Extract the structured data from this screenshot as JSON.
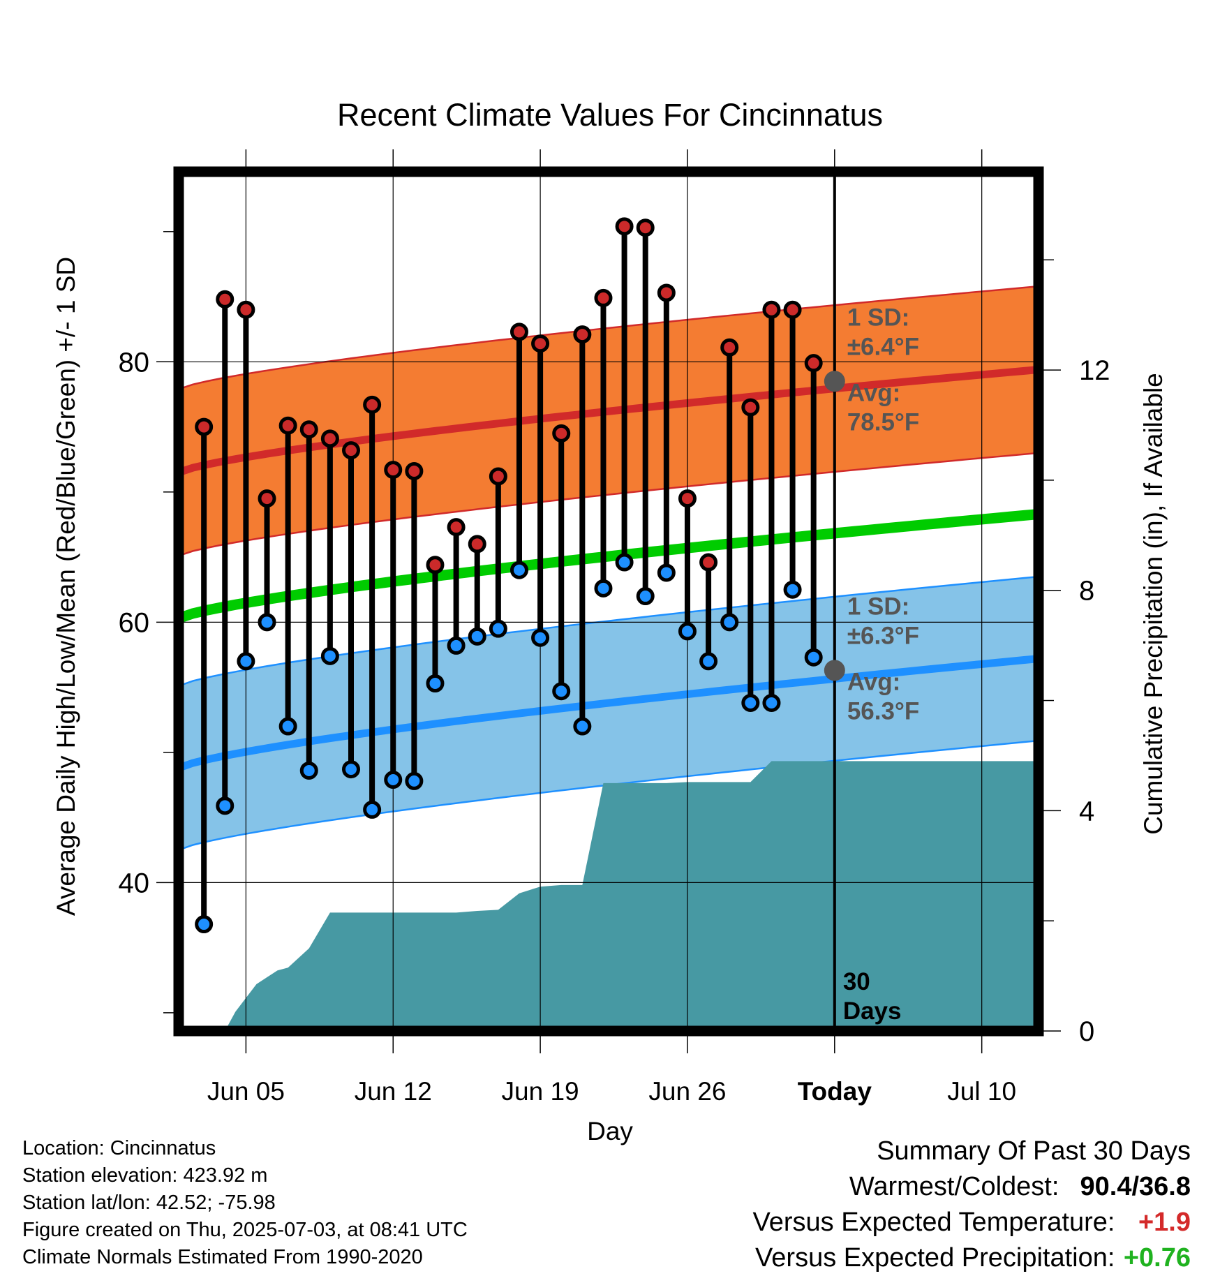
{
  "chart_data": {
    "type": "line",
    "title": "Recent Climate Values For Cincinnatus",
    "xlabel": "Day",
    "ylabel": "Average Daily High/Low/Mean (Red/Blue/Green) +/- 1 SD",
    "y2label": "Cumulative Precipitation (in), If Available",
    "x_ticks": [
      "Jun 05",
      "Jun 12",
      "Jun 19",
      "Jun 26",
      "Today",
      "Jul 10"
    ],
    "x_tick_days": [
      5,
      12,
      19,
      26,
      33,
      40
    ],
    "xlim": [
      1.8,
      42.7
    ],
    "ylim": [
      28.6,
      94.6
    ],
    "y_ticks": [
      40,
      60,
      80
    ],
    "y_minor_ticks": [
      30,
      50,
      70,
      90
    ],
    "y2lim": [
      0,
      15.6
    ],
    "y2_ticks": [
      0,
      4,
      8,
      12
    ],
    "grid": true,
    "today_day": 33,
    "daily_days": [
      3,
      4,
      5,
      6,
      7,
      8,
      9,
      10,
      11,
      12,
      13,
      14,
      15,
      16,
      17,
      18,
      19,
      20,
      21,
      22,
      23,
      24,
      25,
      26,
      27,
      28,
      29,
      30,
      31,
      32
    ],
    "series": [
      {
        "name": "High",
        "color": "#cc2a2a",
        "values": [
          75.0,
          84.8,
          84.0,
          69.5,
          75.1,
          74.8,
          74.1,
          73.2,
          76.7,
          71.7,
          71.6,
          64.4,
          67.3,
          66.0,
          71.2,
          82.3,
          81.4,
          74.5,
          82.1,
          84.9,
          90.4,
          90.3,
          85.3,
          69.5,
          64.6,
          81.1,
          76.5,
          84.0,
          84.0,
          79.9
        ]
      },
      {
        "name": "Low",
        "color": "#1e90ff",
        "values": [
          36.8,
          45.9,
          57.0,
          60.0,
          52.0,
          48.6,
          57.4,
          48.7,
          45.6,
          47.9,
          47.8,
          55.3,
          58.2,
          58.9,
          59.5,
          64.0,
          58.8,
          54.7,
          52.0,
          62.6,
          64.6,
          62.0,
          63.8,
          59.3,
          57.0,
          60.0,
          53.8,
          53.8,
          62.5,
          57.3
        ]
      }
    ],
    "normals": {
      "high": {
        "start": 71.5,
        "end": 79.4,
        "sd": 6.4
      },
      "low": {
        "start": 48.8,
        "end": 57.2,
        "sd": 6.3
      },
      "mean": {
        "start": 60.3,
        "end": 68.3
      }
    },
    "today_markers": [
      {
        "value": 78.5,
        "sd_label": "1 SD:",
        "sd_value": "±6.4°F",
        "avg_label": "Avg:",
        "avg_value": "78.5°F"
      },
      {
        "value": 56.3,
        "sd_label": "1 SD:",
        "sd_value": "±6.3°F",
        "avg_label": "Avg:",
        "avg_value": "56.3°F"
      }
    ],
    "precipitation": {
      "color": "#4799a3",
      "days": [
        4.0,
        4.5,
        5.5,
        6.5,
        7.0,
        8.0,
        9.0,
        10.0,
        11.0,
        12.0,
        13.0,
        14.0,
        15.0,
        16.0,
        17.0,
        18.0,
        19.0,
        20.0,
        21.0,
        22.0,
        23.0,
        24.0,
        25.0,
        26.0,
        27.0,
        28.0,
        29.0,
        30.0,
        31.0,
        32.0,
        33.0,
        42.7
      ],
      "values": [
        0.0,
        0.35,
        0.85,
        1.1,
        1.15,
        1.5,
        2.15,
        2.15,
        2.15,
        2.15,
        2.15,
        2.15,
        2.15,
        2.18,
        2.2,
        2.5,
        2.62,
        2.65,
        2.65,
        4.5,
        4.5,
        4.5,
        4.5,
        4.52,
        4.52,
        4.52,
        4.52,
        4.9,
        4.9,
        4.9,
        4.9,
        4.9
      ]
    },
    "today_label": [
      "30",
      "Days"
    ]
  },
  "info": {
    "location": "Location: Cincinnatus",
    "elevation": "Station elevation: 423.92 m",
    "latlon": "Station lat/lon: 42.52; -75.98",
    "created": "Figure created on Thu, 2025-07-03, at 08:41 UTC",
    "normals": "Climate Normals Estimated From 1990-2020"
  },
  "summary": {
    "title": "Summary Of Past 30 Days",
    "warmest_label": "Warmest/Coldest:",
    "warmest_value": "90.4/36.8",
    "temp_label": "Versus Expected Temperature:",
    "temp_value": "+1.9",
    "temp_color": "#d42a2a",
    "precip_label": "Versus Expected Precipitation:",
    "precip_value": "+0.76",
    "precip_color": "#1fb21f"
  },
  "colors": {
    "high_band": "#f47c32",
    "high_line": "#d12a2a",
    "low_band": "#85c3e8",
    "low_line": "#1e90ff",
    "mean_line": "#00cc00",
    "precip": "#4799a3",
    "marker": "#555555"
  }
}
